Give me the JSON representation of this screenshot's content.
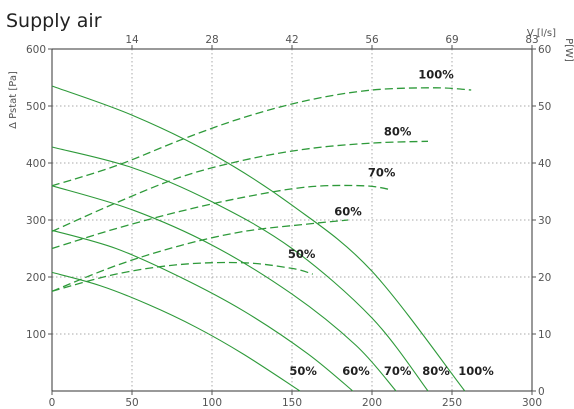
{
  "chart_data": {
    "type": "line",
    "title": "Supply air",
    "xlabel": "",
    "ylabel": "Δ Pstat [Pa]",
    "top_axis_label": "V [l/s]",
    "right_axis_label": "P[W]",
    "xlim": [
      0,
      300
    ],
    "ylim": [
      0,
      600
    ],
    "y2lim": [
      0,
      60
    ],
    "grid": true,
    "x_ticks": [
      "0",
      "50",
      "100",
      "150",
      "200",
      "250",
      "300"
    ],
    "y_ticks": [
      "100",
      "200",
      "300",
      "400",
      "500",
      "600"
    ],
    "top_ticks": [
      "14",
      "28",
      "42",
      "56",
      "69",
      "83"
    ],
    "right_ticks": [
      "0",
      "10",
      "20",
      "30",
      "40",
      "50",
      "60"
    ],
    "pressure_series": [
      {
        "name": "50%",
        "points": [
          [
            0,
            208
          ],
          [
            30,
            185
          ],
          [
            60,
            152
          ],
          [
            90,
            112
          ],
          [
            120,
            64
          ],
          [
            155,
            0
          ]
        ]
      },
      {
        "name": "60%",
        "points": [
          [
            0,
            282
          ],
          [
            40,
            250
          ],
          [
            80,
            200
          ],
          [
            120,
            140
          ],
          [
            160,
            65
          ],
          [
            188,
            0
          ]
        ]
      },
      {
        "name": "70%",
        "points": [
          [
            0,
            360
          ],
          [
            50,
            318
          ],
          [
            100,
            256
          ],
          [
            150,
            170
          ],
          [
            190,
            80
          ],
          [
            215,
            0
          ]
        ]
      },
      {
        "name": "80%",
        "points": [
          [
            0,
            428
          ],
          [
            50,
            392
          ],
          [
            100,
            332
          ],
          [
            150,
            250
          ],
          [
            200,
            128
          ],
          [
            235,
            0
          ]
        ]
      },
      {
        "name": "100%",
        "points": [
          [
            0,
            535
          ],
          [
            50,
            484
          ],
          [
            100,
            416
          ],
          [
            150,
            326
          ],
          [
            200,
            210
          ],
          [
            258,
            0
          ]
        ]
      }
    ],
    "power_series": [
      {
        "name": "50%",
        "points": [
          [
            0,
            17.5
          ],
          [
            40,
            20.5
          ],
          [
            80,
            22.2
          ],
          [
            120,
            22.5
          ],
          [
            150,
            21.5
          ],
          [
            163,
            20.5
          ]
        ]
      },
      {
        "name": "60%",
        "points": [
          [
            0,
            17.5
          ],
          [
            40,
            22.0
          ],
          [
            80,
            25.5
          ],
          [
            120,
            28.0
          ],
          [
            160,
            29.3
          ],
          [
            185,
            30.0
          ]
        ]
      },
      {
        "name": "70%",
        "points": [
          [
            0,
            25.0
          ],
          [
            40,
            28.5
          ],
          [
            80,
            31.5
          ],
          [
            120,
            34.0
          ],
          [
            160,
            35.8
          ],
          [
            195,
            36.0
          ],
          [
            212,
            35.3
          ]
        ]
      },
      {
        "name": "80%",
        "points": [
          [
            0,
            28.0
          ],
          [
            40,
            33.0
          ],
          [
            80,
            37.5
          ],
          [
            120,
            40.5
          ],
          [
            160,
            42.5
          ],
          [
            200,
            43.5
          ],
          [
            235,
            43.8
          ]
        ]
      },
      {
        "name": "100%",
        "points": [
          [
            0,
            36.0
          ],
          [
            40,
            39.5
          ],
          [
            80,
            44.0
          ],
          [
            120,
            48.0
          ],
          [
            160,
            51.0
          ],
          [
            200,
            52.8
          ],
          [
            240,
            53.2
          ],
          [
            262,
            52.8
          ]
        ]
      }
    ],
    "curve_labels": [
      "50%",
      "60%",
      "70%",
      "80%",
      "100%"
    ],
    "power_labels": [
      "50%",
      "60%",
      "70%",
      "80%",
      "100%"
    ]
  }
}
